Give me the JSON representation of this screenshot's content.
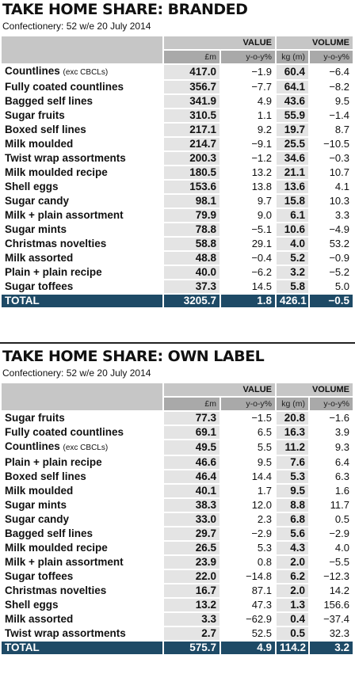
{
  "sections": [
    {
      "title": "TAKE HOME SHARE: BRANDED",
      "subtitle": "Confectionery: 52 w/e 20 July 2014",
      "groups": [
        "VALUE",
        "VOLUME"
      ],
      "columns": [
        "£m",
        "y-o-y%",
        "kg (m)",
        "y-o-y%"
      ],
      "rows": [
        {
          "name": "Countlines",
          "note": "(exc CBCLs)",
          "cells": [
            "417.0",
            "−1.9",
            "60.4",
            "−6.4"
          ]
        },
        {
          "name": "Fully coated countlines",
          "cells": [
            "356.7",
            "−7.7",
            "64.1",
            "−8.2"
          ]
        },
        {
          "name": "Bagged self lines",
          "cells": [
            "341.9",
            "4.9",
            "43.6",
            "9.5"
          ]
        },
        {
          "name": "Sugar fruits",
          "cells": [
            "310.5",
            "1.1",
            "55.9",
            "−1.4"
          ]
        },
        {
          "name": "Boxed self lines",
          "cells": [
            "217.1",
            "9.2",
            "19.7",
            "8.7"
          ]
        },
        {
          "name": "Milk moulded",
          "cells": [
            "214.7",
            "−9.1",
            "25.5",
            "−10.5"
          ]
        },
        {
          "name": "Twist wrap assortments",
          "cells": [
            "200.3",
            "−1.2",
            "34.6",
            "−0.3"
          ]
        },
        {
          "name": "Milk moulded recipe",
          "cells": [
            "180.5",
            "13.2",
            "21.1",
            "10.7"
          ]
        },
        {
          "name": "Shell eggs",
          "cells": [
            "153.6",
            "13.8",
            "13.6",
            "4.1"
          ]
        },
        {
          "name": "Sugar candy",
          "cells": [
            "98.1",
            "9.7",
            "15.8",
            "10.3"
          ]
        },
        {
          "name": "Milk + plain assortment",
          "cells": [
            "79.9",
            "9.0",
            "6.1",
            "3.3"
          ]
        },
        {
          "name": "Sugar mints",
          "cells": [
            "78.8",
            "−5.1",
            "10.6",
            "−4.9"
          ]
        },
        {
          "name": "Christmas novelties",
          "cells": [
            "58.8",
            "29.1",
            "4.0",
            "53.2"
          ]
        },
        {
          "name": "Milk assorted",
          "cells": [
            "48.8",
            "−0.4",
            "5.2",
            "−0.9"
          ]
        },
        {
          "name": "Plain + plain recipe",
          "cells": [
            "40.0",
            "−6.2",
            "3.2",
            "−5.2"
          ]
        },
        {
          "name": "Sugar toffees",
          "cells": [
            "37.3",
            "14.5",
            "5.8",
            "5.0"
          ]
        }
      ],
      "total": {
        "name": "TOTAL",
        "cells": [
          "3205.7",
          "1.8",
          "426.1",
          "−0.5"
        ]
      }
    },
    {
      "title": "TAKE HOME SHARE: OWN LABEL",
      "subtitle": "Confectionery: 52 w/e 20 July 2014",
      "groups": [
        "VALUE",
        "VOLUME"
      ],
      "columns": [
        "£m",
        "y-o-y%",
        "kg (m)",
        "y-o-y%"
      ],
      "rows": [
        {
          "name": "Sugar fruits",
          "cells": [
            "77.3",
            "−1.5",
            "20.8",
            "−1.6"
          ]
        },
        {
          "name": "Fully coated countlines",
          "cells": [
            "69.1",
            "6.5",
            "16.3",
            "3.9"
          ]
        },
        {
          "name": "Countlines",
          "note": "(exc CBCLs)",
          "cells": [
            "49.5",
            "5.5",
            "11.2",
            "9.3"
          ]
        },
        {
          "name": "Plain + plain recipe",
          "cells": [
            "46.6",
            "9.5",
            "7.6",
            "6.4"
          ]
        },
        {
          "name": "Boxed self lines",
          "cells": [
            "46.4",
            "14.4",
            "5.3",
            "6.3"
          ]
        },
        {
          "name": "Milk moulded",
          "cells": [
            "40.1",
            "1.7",
            "9.5",
            "1.6"
          ]
        },
        {
          "name": "Sugar mints",
          "cells": [
            "38.3",
            "12.0",
            "8.8",
            "11.7"
          ]
        },
        {
          "name": "Sugar candy",
          "cells": [
            "33.0",
            "2.3",
            "6.8",
            "0.5"
          ]
        },
        {
          "name": "Bagged self lines",
          "cells": [
            "29.7",
            "−2.9",
            "5.6",
            "−2.9"
          ]
        },
        {
          "name": "Milk moulded recipe",
          "cells": [
            "26.5",
            "5.3",
            "4.3",
            "4.0"
          ]
        },
        {
          "name": "Milk + plain assortment",
          "cells": [
            "23.9",
            "0.8",
            "2.0",
            "−5.5"
          ]
        },
        {
          "name": "Sugar toffees",
          "cells": [
            "22.0",
            "−14.8",
            "6.2",
            "−12.3"
          ]
        },
        {
          "name": "Christmas novelties",
          "cells": [
            "16.7",
            "87.1",
            "2.0",
            "14.2"
          ]
        },
        {
          "name": "Shell eggs",
          "cells": [
            "13.2",
            "47.3",
            "1.3",
            "156.6"
          ]
        },
        {
          "name": "Milk assorted",
          "cells": [
            "3.3",
            "−62.9",
            "0.4",
            "−37.4"
          ]
        },
        {
          "name": "Twist wrap assortments",
          "cells": [
            "2.7",
            "52.5",
            "0.5",
            "32.3"
          ]
        }
      ],
      "total": {
        "name": "TOTAL",
        "cells": [
          "575.7",
          "4.9",
          "114.2",
          "3.2"
        ]
      }
    }
  ]
}
